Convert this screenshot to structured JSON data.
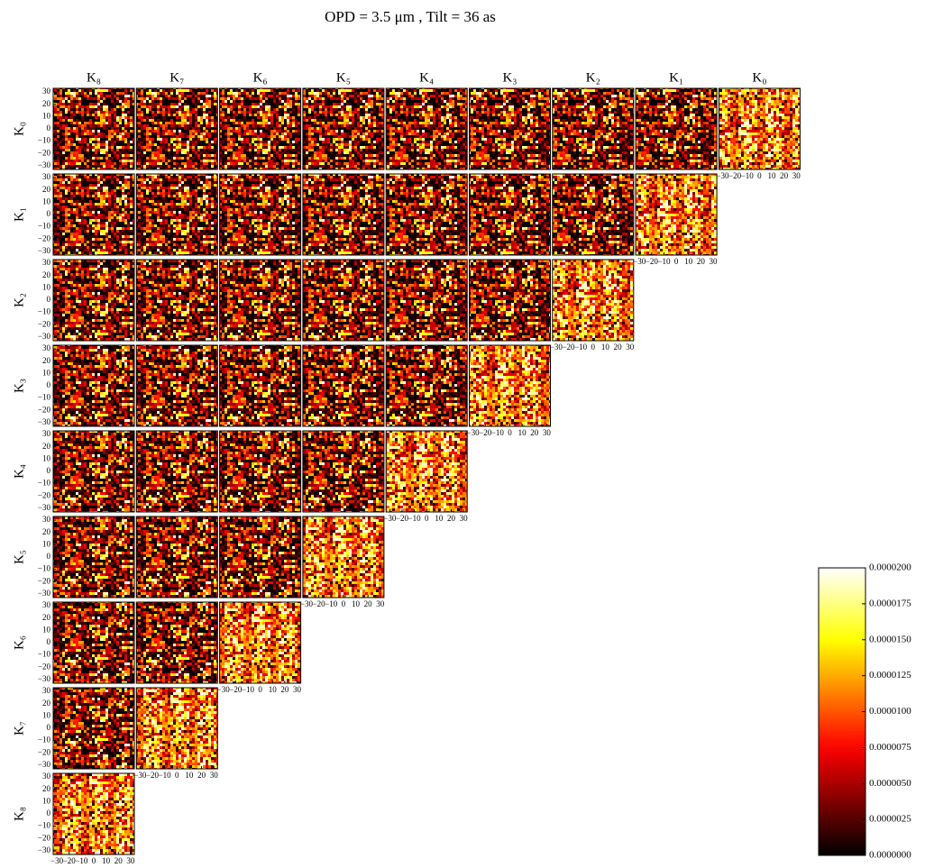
{
  "chart_data": {
    "type": "heatmap-grid",
    "title": "OPD = 3.5 μm , Tilt = 36 as",
    "column_labels": [
      "K₈",
      "K₇",
      "K₆",
      "K₅",
      "K₄",
      "K₃",
      "K₂",
      "K₁",
      "K₀"
    ],
    "row_labels": [
      "K₀",
      "K₁",
      "K₂",
      "K₃",
      "K₄",
      "K₅",
      "K₆",
      "K₇",
      "K₈"
    ],
    "xlim": [
      -33,
      33
    ],
    "ylim": [
      -33,
      33
    ],
    "xticks": [
      {
        "value": -30,
        "label": "−30"
      },
      {
        "value": -20,
        "label": "−20"
      },
      {
        "value": -10,
        "label": "−10"
      },
      0,
      10,
      20,
      30
    ],
    "yticks": [
      {
        "value": -30,
        "label": "−30"
      },
      {
        "value": -20,
        "label": "−20"
      },
      {
        "value": -10,
        "label": "−10"
      },
      0,
      10,
      20,
      30
    ],
    "colorbar": {
      "colormap": "hot",
      "lim": [
        0,
        2e-05
      ],
      "ticks": [
        {
          "value": 0,
          "label": "0.0000000"
        },
        {
          "value": 2.5e-06,
          "label": "0.0000025"
        },
        {
          "value": 5e-06,
          "label": "0.0000050"
        },
        {
          "value": 7.5e-06,
          "label": "0.0000075"
        },
        {
          "value": 1e-05,
          "label": "0.0000100"
        },
        {
          "value": 1.25e-05,
          "label": "0.0000125"
        },
        {
          "value": 1.5e-05,
          "label": "0.0000150"
        },
        {
          "value": 1.75e-05,
          "label": "0.0000175"
        },
        {
          "value": 2e-05,
          "label": "0.0000200"
        }
      ]
    }
  }
}
